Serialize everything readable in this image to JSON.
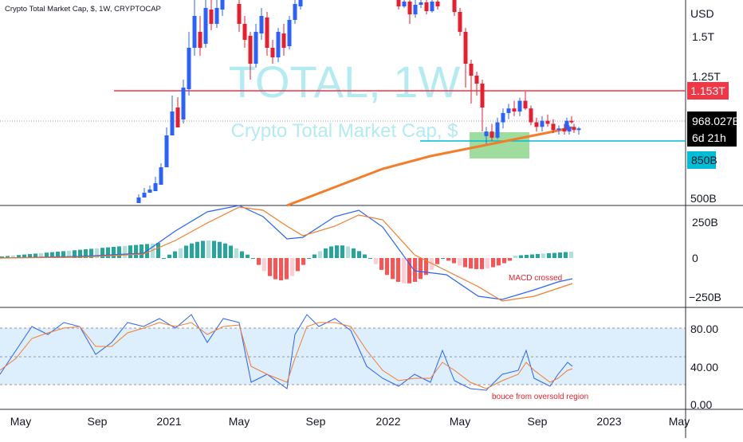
{
  "header": {
    "symbol_info": "Crypto Total Market Cap, $, 1W, CRYPTOCAP"
  },
  "watermark": {
    "title": "TOTAL, 1W",
    "subtitle": "Crypto Total Market Cap, $"
  },
  "price_axis": {
    "unit": "USD",
    "ticks": [
      "1.5T",
      "1.25T",
      "500B"
    ]
  },
  "price_tags": {
    "resistance": "1.153T",
    "last": "968.027B",
    "countdown": "6d 21h",
    "support": "850B"
  },
  "macd_axis": {
    "ticks": [
      "250B",
      "0",
      "−250B"
    ]
  },
  "rsi_axis": {
    "ticks": [
      "80.00",
      "40.00",
      "0.00"
    ]
  },
  "annotations": {
    "macd": "MACD crossed",
    "rsi": "bouce from oversold region"
  },
  "time_axis": [
    "May",
    "Sep",
    "2021",
    "May",
    "Sep",
    "2022",
    "May",
    "Sep",
    "2023",
    "May"
  ],
  "colors": {
    "up": "#2962ff",
    "down": "#e91e2d",
    "ma": "#f57c28",
    "macd": "#2962ff",
    "signal": "#f57c28",
    "hist_up_strong": "#26a69a",
    "hist_up_weak": "#b2dfdb",
    "hist_down_strong": "#ff5252",
    "hist_down_weak": "#ffcdd2",
    "resistance": "#f23645",
    "support": "#00bcd4",
    "zone": "#7fd17f",
    "rsi_band": "#ddeefc",
    "watermark": "#b2ebf2"
  },
  "chart_data": {
    "type": "candlestick",
    "interval": "1W",
    "price_levels": {
      "resistance": 1.153,
      "support": 0.85,
      "last": 0.968
    },
    "price_unit": "T USD",
    "candles_recent": [
      {
        "o": 0.87,
        "h": 0.93,
        "l": 0.82,
        "c": 0.9
      },
      {
        "o": 0.9,
        "h": 0.95,
        "l": 0.84,
        "c": 0.86
      },
      {
        "o": 0.86,
        "h": 0.99,
        "l": 0.85,
        "c": 0.96
      },
      {
        "o": 0.96,
        "h": 1.05,
        "l": 0.92,
        "c": 1.02
      },
      {
        "o": 1.02,
        "h": 1.08,
        "l": 0.98,
        "c": 1.05
      },
      {
        "o": 1.05,
        "h": 1.1,
        "l": 1.0,
        "c": 1.03
      },
      {
        "o": 1.03,
        "h": 1.12,
        "l": 1.0,
        "c": 1.1
      },
      {
        "o": 1.1,
        "h": 1.16,
        "l": 1.04,
        "c": 1.05
      },
      {
        "o": 1.05,
        "h": 1.07,
        "l": 0.94,
        "c": 0.96
      },
      {
        "o": 0.96,
        "h": 0.99,
        "l": 0.9,
        "c": 0.93
      },
      {
        "o": 0.93,
        "h": 1.0,
        "l": 0.9,
        "c": 0.97
      },
      {
        "o": 0.97,
        "h": 1.01,
        "l": 0.93,
        "c": 0.95
      },
      {
        "o": 0.95,
        "h": 0.98,
        "l": 0.89,
        "c": 0.91
      },
      {
        "o": 0.91,
        "h": 0.94,
        "l": 0.88,
        "c": 0.92
      },
      {
        "o": 0.92,
        "h": 0.95,
        "l": 0.88,
        "c": 0.9
      },
      {
        "o": 0.9,
        "h": 0.94,
        "l": 0.88,
        "c": 0.93
      },
      {
        "o": 0.93,
        "h": 0.95,
        "l": 0.89,
        "c": 0.91
      },
      {
        "o": 0.91,
        "h": 0.93,
        "l": 0.88,
        "c": 0.92
      },
      {
        "o": 0.92,
        "h": 0.99,
        "l": 0.91,
        "c": 0.97
      },
      {
        "o": 0.97,
        "h": 1.0,
        "l": 0.95,
        "c": 0.968
      }
    ],
    "indicators": [
      "MA",
      "MACD",
      "RSI"
    ],
    "rsi_band": [
      20,
      80
    ]
  }
}
